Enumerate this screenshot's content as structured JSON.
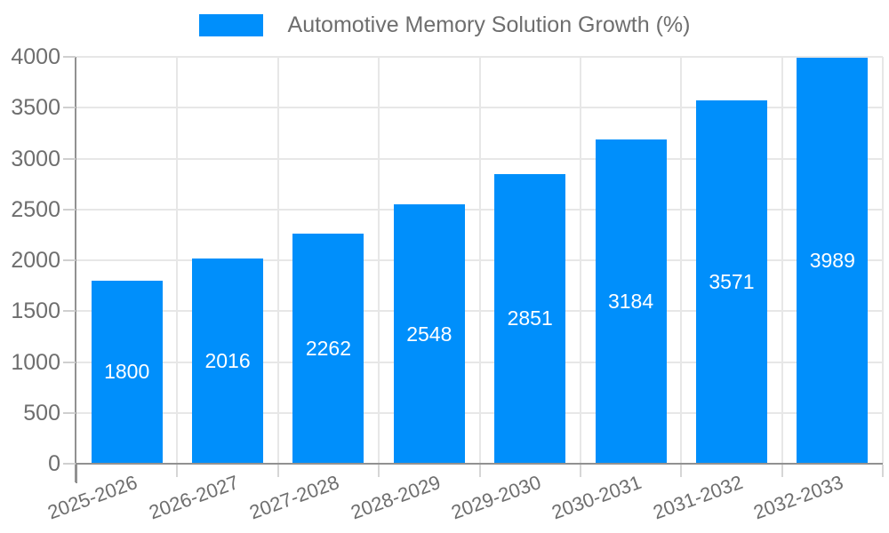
{
  "legend": {
    "label": "Automotive Memory Solution Growth (%)"
  },
  "chart_data": {
    "type": "bar",
    "title": "Automotive Memory Solution Growth (%)",
    "categories": [
      "2025-2026",
      "2026-2027",
      "2027-2028",
      "2028-2029",
      "2029-2030",
      "2030-2031",
      "2031-2032",
      "2032-2033"
    ],
    "series": [
      {
        "name": "Automotive Memory Solution Growth (%)",
        "color": "#008ffb",
        "values": [
          1800,
          2016,
          2262,
          2548,
          2851,
          3184,
          3571,
          3989
        ]
      }
    ],
    "data_labels": {
      "show": true,
      "position": "inside-center",
      "color": "#ffffff"
    },
    "xlabel": "",
    "ylabel": "",
    "ylim": [
      0,
      4000
    ],
    "yticks": [
      0,
      500,
      1000,
      1500,
      2000,
      2500,
      3000,
      3500,
      4000
    ],
    "grid": true,
    "legend_position": "top",
    "x_label_rotation_deg": -20,
    "colors": {
      "bar": "#008ffb",
      "grid": "#e7e7e7",
      "axis": "#919191",
      "tick": "#cfcfcf",
      "text": "#6e6e6e",
      "value_label": "#ffffff",
      "background": "#ffffff"
    }
  }
}
